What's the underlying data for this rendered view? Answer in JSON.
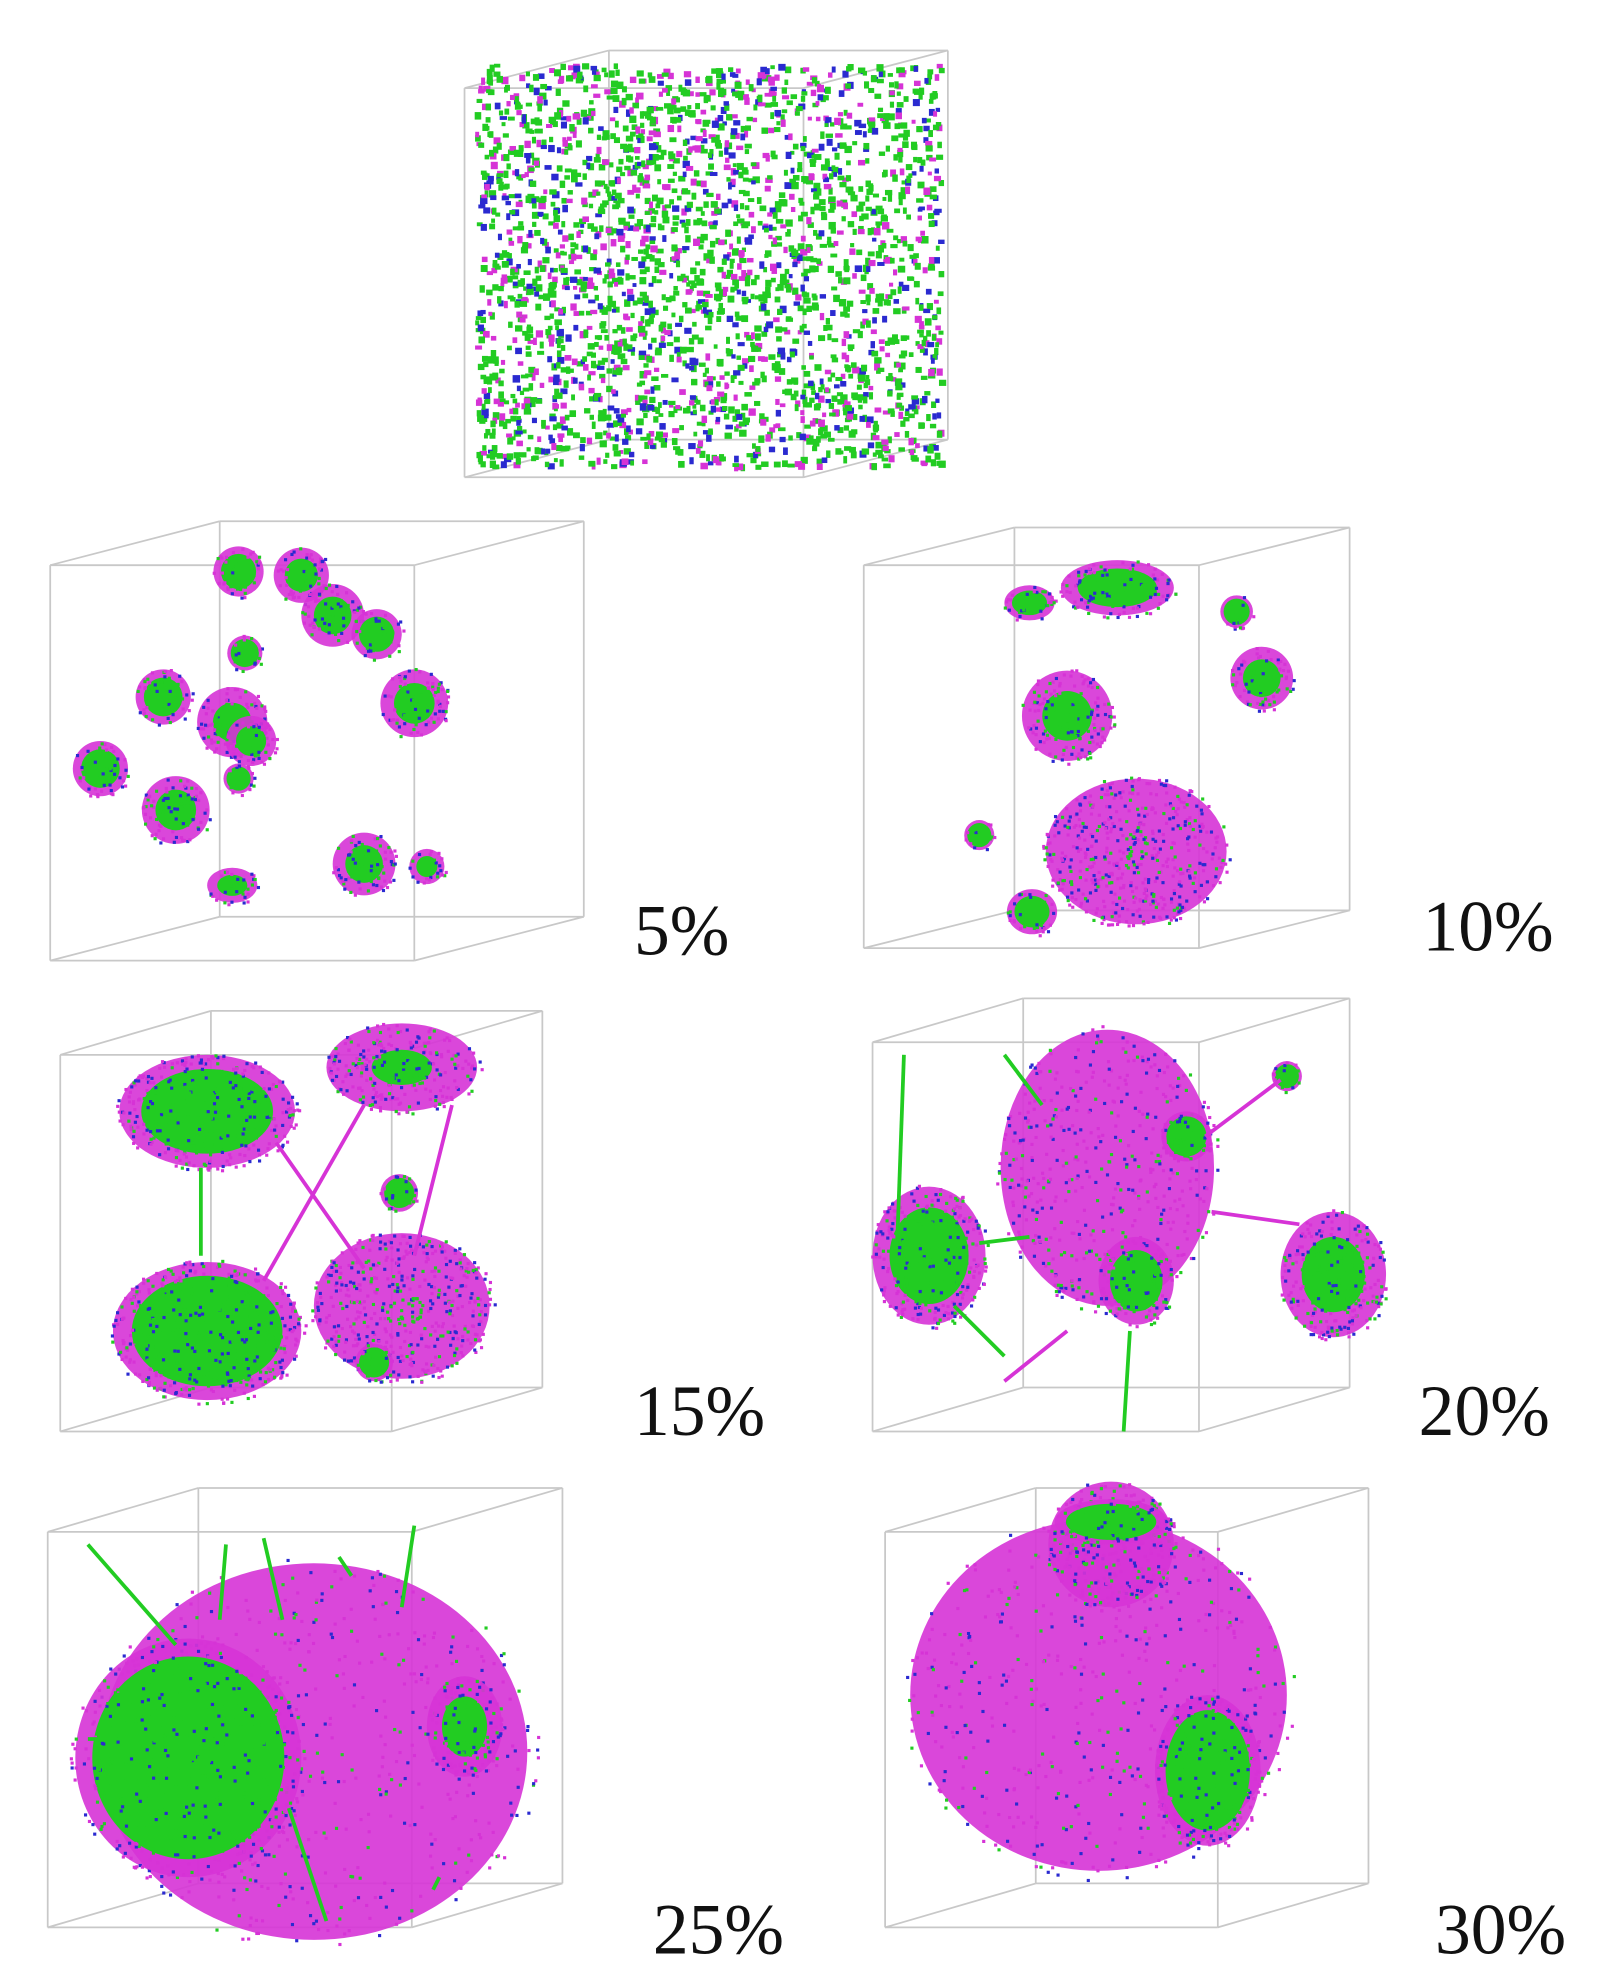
{
  "labels": [
    "5%",
    "10%",
    "15%",
    "20%",
    "25%",
    "30%"
  ]
}
